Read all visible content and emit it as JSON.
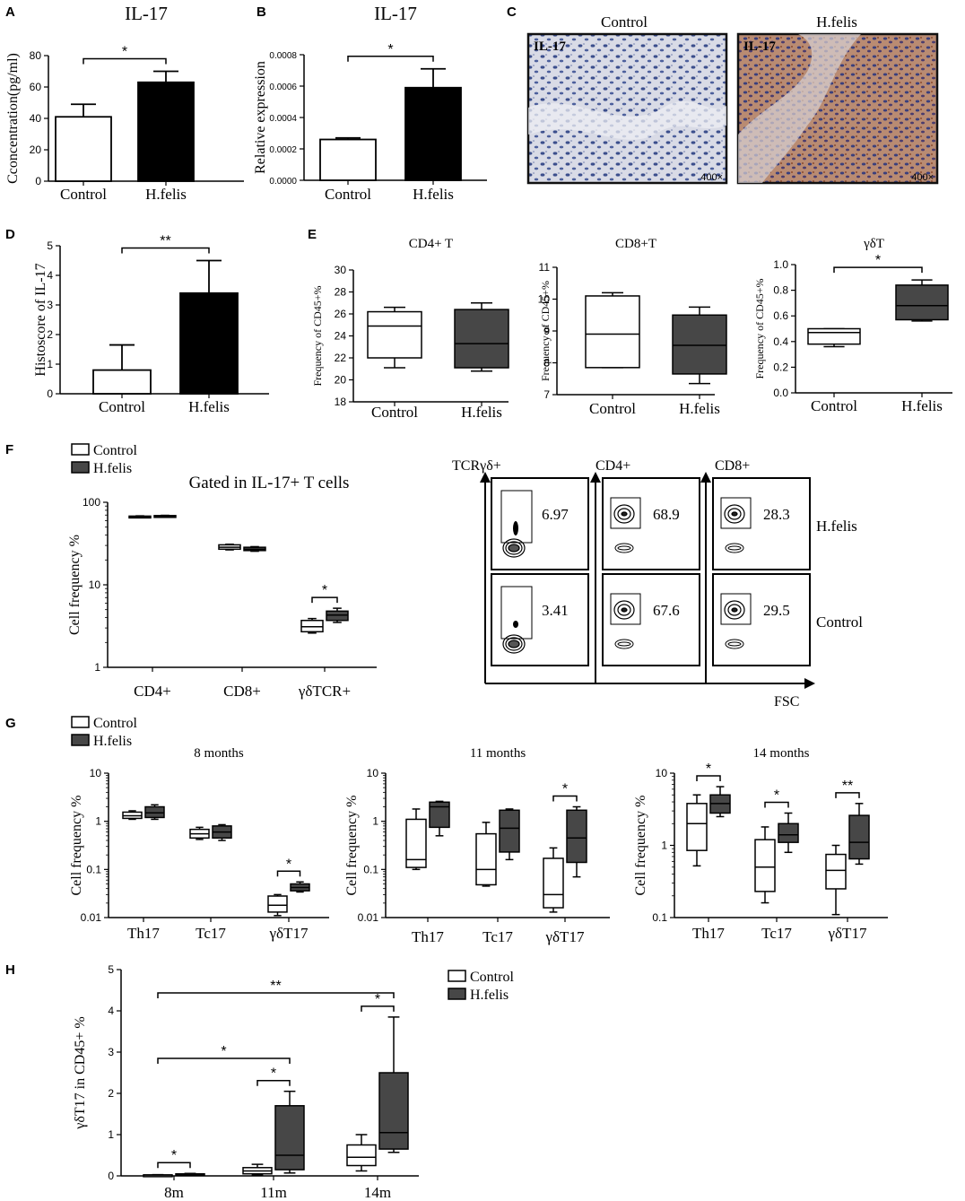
{
  "colors": {
    "control": "#ffffff",
    "hfelis_bar": "#000000",
    "hfelis_box": "#474747",
    "ink": "#000000"
  },
  "chart_data": [
    {
      "panel": "A",
      "type": "bar",
      "title": "IL-17",
      "ylabel": "Cconcentration(pg/ml)",
      "categories": [
        "Control",
        "H.felis"
      ],
      "values": [
        41,
        63
      ],
      "errors": [
        8,
        7
      ],
      "ylim": [
        0,
        80
      ],
      "yticks": [
        "0",
        "20",
        "40",
        "60",
        "80"
      ],
      "sig": [
        {
          "from": 0,
          "to": 1,
          "label": "*"
        }
      ]
    },
    {
      "panel": "B",
      "type": "bar",
      "title": "IL-17",
      "ylabel": "Relative expression",
      "categories": [
        "Control",
        "H.felis"
      ],
      "values": [
        0.00026,
        0.00059
      ],
      "errors": [
        1e-05,
        0.00012
      ],
      "ylim": [
        0,
        0.0008
      ],
      "yticks": [
        "0.0000",
        "0.0002",
        "0.0004",
        "0.0006",
        "0.0008"
      ],
      "sig": [
        {
          "from": 0,
          "to": 1,
          "label": "*"
        }
      ]
    },
    {
      "panel": "C",
      "type": "image",
      "images": [
        {
          "title": "Control",
          "stain": "IL-17",
          "mag": "400×"
        },
        {
          "title": "H.felis",
          "stain": "IL-17",
          "mag": "400×"
        }
      ]
    },
    {
      "panel": "D",
      "type": "bar",
      "ylabel": "Histoscore of IL-17",
      "categories": [
        "Control",
        "H.felis"
      ],
      "values": [
        0.8,
        3.4
      ],
      "errors": [
        0.85,
        1.1
      ],
      "ylim": [
        0,
        5
      ],
      "yticks": [
        "0",
        "1",
        "2",
        "3",
        "4",
        "5"
      ],
      "sig": [
        {
          "from": 0,
          "to": 1,
          "label": "**"
        }
      ]
    },
    {
      "panel": "E1",
      "type": "box",
      "title": "CD4+ T",
      "ylabel": "Frequency of CD45+%",
      "categories": [
        "Control",
        "H.felis"
      ],
      "ylim": [
        18,
        30
      ],
      "yticks": [
        "18",
        "20",
        "22",
        "24",
        "26",
        "28",
        "30"
      ],
      "series": [
        {
          "name": "Control",
          "boxes": [
            [
              21.1,
              22,
              24.9,
              26.2,
              26.6
            ]
          ]
        },
        {
          "name": "H.felis",
          "boxes": [
            [
              20.8,
              21.1,
              23.3,
              26.4,
              27
            ]
          ]
        }
      ],
      "sig": []
    },
    {
      "panel": "E2",
      "type": "box",
      "title": "CD8+T",
      "ylabel": "Frequency of CD45+%",
      "categories": [
        "Control",
        "H.felis"
      ],
      "ylim": [
        7,
        11
      ],
      "yticks": [
        "7",
        "8",
        "9",
        "10",
        "11"
      ],
      "series": [
        {
          "name": "Control",
          "boxes": [
            [
              7.85,
              7.85,
              8.9,
              10.1,
              10.2
            ]
          ]
        },
        {
          "name": "H.felis",
          "boxes": [
            [
              7.35,
              7.65,
              8.55,
              9.5,
              9.75
            ]
          ]
        }
      ],
      "sig": []
    },
    {
      "panel": "E3",
      "type": "box",
      "title": "γδT",
      "ylabel": "Frequency of CD45+%",
      "categories": [
        "Control",
        "H.felis"
      ],
      "ylim": [
        0,
        1
      ],
      "yticks": [
        "0.0",
        "0.2",
        "0.4",
        "0.6",
        "0.8",
        "1.0"
      ],
      "series": [
        {
          "name": "Control",
          "boxes": [
            [
              0.36,
              0.38,
              0.47,
              0.5,
              0.5
            ]
          ]
        },
        {
          "name": "H.felis",
          "boxes": [
            [
              0.56,
              0.57,
              0.68,
              0.84,
              0.88
            ]
          ]
        }
      ],
      "sig": [
        {
          "from": 0,
          "to": 1,
          "label": "*"
        }
      ]
    },
    {
      "panel": "F",
      "type": "box",
      "title": "Gated in IL-17+ T cells",
      "ylabel": "Cell frequency %",
      "scale": "log",
      "categories": [
        "CD4+",
        "CD8+",
        "γδTCR+"
      ],
      "ylim": [
        1,
        100
      ],
      "yticks": [
        "1",
        "10",
        "100"
      ],
      "legend": [
        "Control",
        "H.felis"
      ],
      "series": [
        {
          "name": "Control",
          "boxes": [
            [
              66,
              66.5,
              67,
              68,
              68.5
            ],
            [
              26.5,
              27,
              28.5,
              30.5,
              31
            ],
            [
              2.6,
              2.7,
              3.1,
              3.7,
              3.9
            ]
          ]
        },
        {
          "name": "H.felis",
          "boxes": [
            [
              66.5,
              67,
              68,
              69,
              69.5
            ],
            [
              25.5,
              26,
              27,
              28.5,
              29
            ],
            [
              3.5,
              3.7,
              4.3,
              4.8,
              5.2
            ]
          ]
        }
      ],
      "sig": [
        {
          "group": 2,
          "label": "*"
        }
      ]
    },
    {
      "panel": "F-flow",
      "type": "table",
      "columns": [
        "TCRγδ+",
        "CD4+",
        "CD8+"
      ],
      "rows": [
        "H.felis",
        "Control"
      ],
      "values": [
        [
          "6.97",
          "68.9",
          "28.3"
        ],
        [
          "3.41",
          "67.6",
          "29.5"
        ]
      ],
      "xlabel": "FSC"
    },
    {
      "panel": "G1",
      "type": "box",
      "title": "8 months",
      "ylabel": "Cell frequency %",
      "scale": "log",
      "categories": [
        "Th17",
        "Tc17",
        "γδT17"
      ],
      "ylim": [
        0.01,
        10
      ],
      "yticks": [
        "0.01",
        "0.1",
        "1",
        "10"
      ],
      "legend": [
        "Control",
        "H.felis"
      ],
      "series": [
        {
          "name": "Control",
          "boxes": [
            [
              1.1,
              1.15,
              1.3,
              1.55,
              1.65
            ],
            [
              0.42,
              0.45,
              0.55,
              0.68,
              0.75
            ],
            [
              0.011,
              0.013,
              0.018,
              0.028,
              0.03
            ]
          ]
        },
        {
          "name": "H.felis",
          "boxes": [
            [
              1.1,
              1.2,
              1.5,
              2.0,
              2.2
            ],
            [
              0.4,
              0.45,
              0.6,
              0.8,
              0.85
            ],
            [
              0.034,
              0.036,
              0.042,
              0.05,
              0.055
            ]
          ]
        }
      ],
      "sig": [
        {
          "group": 2,
          "label": "*"
        }
      ]
    },
    {
      "panel": "G2",
      "type": "box",
      "title": "11 months",
      "ylabel": "Cell frequency %",
      "scale": "log",
      "categories": [
        "Th17",
        "Tc17",
        "γδT17"
      ],
      "ylim": [
        0.01,
        10
      ],
      "yticks": [
        "0.01",
        "0.1",
        "1",
        "10"
      ],
      "series": [
        {
          "name": "Control",
          "boxes": [
            [
              0.1,
              0.11,
              0.16,
              1.1,
              1.8
            ],
            [
              0.045,
              0.048,
              0.1,
              0.55,
              0.95
            ],
            [
              0.013,
              0.016,
              0.03,
              0.17,
              0.28
            ]
          ]
        },
        {
          "name": "H.felis",
          "boxes": [
            [
              0.5,
              0.75,
              2.0,
              2.5,
              2.6
            ],
            [
              0.16,
              0.23,
              0.72,
              1.7,
              1.8
            ],
            [
              0.07,
              0.14,
              0.45,
              1.7,
              2.0
            ]
          ]
        }
      ],
      "sig": [
        {
          "group": 2,
          "label": "*"
        }
      ]
    },
    {
      "panel": "G3",
      "type": "box",
      "title": "14 months",
      "ylabel": "Cell frequency %",
      "scale": "log",
      "categories": [
        "Th17",
        "Tc17",
        "γδT17"
      ],
      "ylim": [
        0.1,
        10
      ],
      "yticks": [
        "0.1",
        "1",
        "10"
      ],
      "series": [
        {
          "name": "Control",
          "boxes": [
            [
              0.52,
              0.85,
              2.0,
              3.8,
              5.0
            ],
            [
              0.16,
              0.23,
              0.5,
              1.2,
              1.8
            ],
            [
              0.11,
              0.25,
              0.45,
              0.75,
              1.0
            ]
          ]
        },
        {
          "name": "H.felis",
          "boxes": [
            [
              2.5,
              2.8,
              3.8,
              5.0,
              6.5
            ],
            [
              0.8,
              1.1,
              1.4,
              2.0,
              2.8
            ],
            [
              0.55,
              0.65,
              1.1,
              2.6,
              3.8
            ]
          ]
        }
      ],
      "sig": [
        {
          "group": 0,
          "label": "*"
        },
        {
          "group": 1,
          "label": "*"
        },
        {
          "group": 2,
          "label": "**"
        }
      ]
    },
    {
      "panel": "H",
      "type": "box",
      "ylabel": "γδT17 in CD45+ %",
      "categories": [
        "8m",
        "11m",
        "14m"
      ],
      "ylim": [
        0,
        5
      ],
      "yticks": [
        "0",
        "1",
        "2",
        "3",
        "4",
        "5"
      ],
      "legend": [
        "Control",
        "H.felis"
      ],
      "series": [
        {
          "name": "Control",
          "boxes": [
            [
              0.01,
              0.015,
              0.02,
              0.025,
              0.03
            ],
            [
              0.02,
              0.05,
              0.12,
              0.2,
              0.28
            ],
            [
              0.12,
              0.25,
              0.45,
              0.75,
              1.0
            ]
          ]
        },
        {
          "name": "H.felis",
          "boxes": [
            [
              0.02,
              0.03,
              0.04,
              0.05,
              0.06
            ],
            [
              0.07,
              0.15,
              0.5,
              1.7,
              2.05
            ],
            [
              0.57,
              0.65,
              1.05,
              2.5,
              3.85
            ]
          ]
        }
      ],
      "sig": [
        {
          "group": 0,
          "label": "*"
        },
        {
          "group": 1,
          "label": "*"
        },
        {
          "group": 2,
          "label": "*"
        },
        {
          "from_group": 0,
          "to_group": 1,
          "label": "*"
        },
        {
          "from_group": 0,
          "to_group": 2,
          "label": "**"
        }
      ]
    }
  ]
}
